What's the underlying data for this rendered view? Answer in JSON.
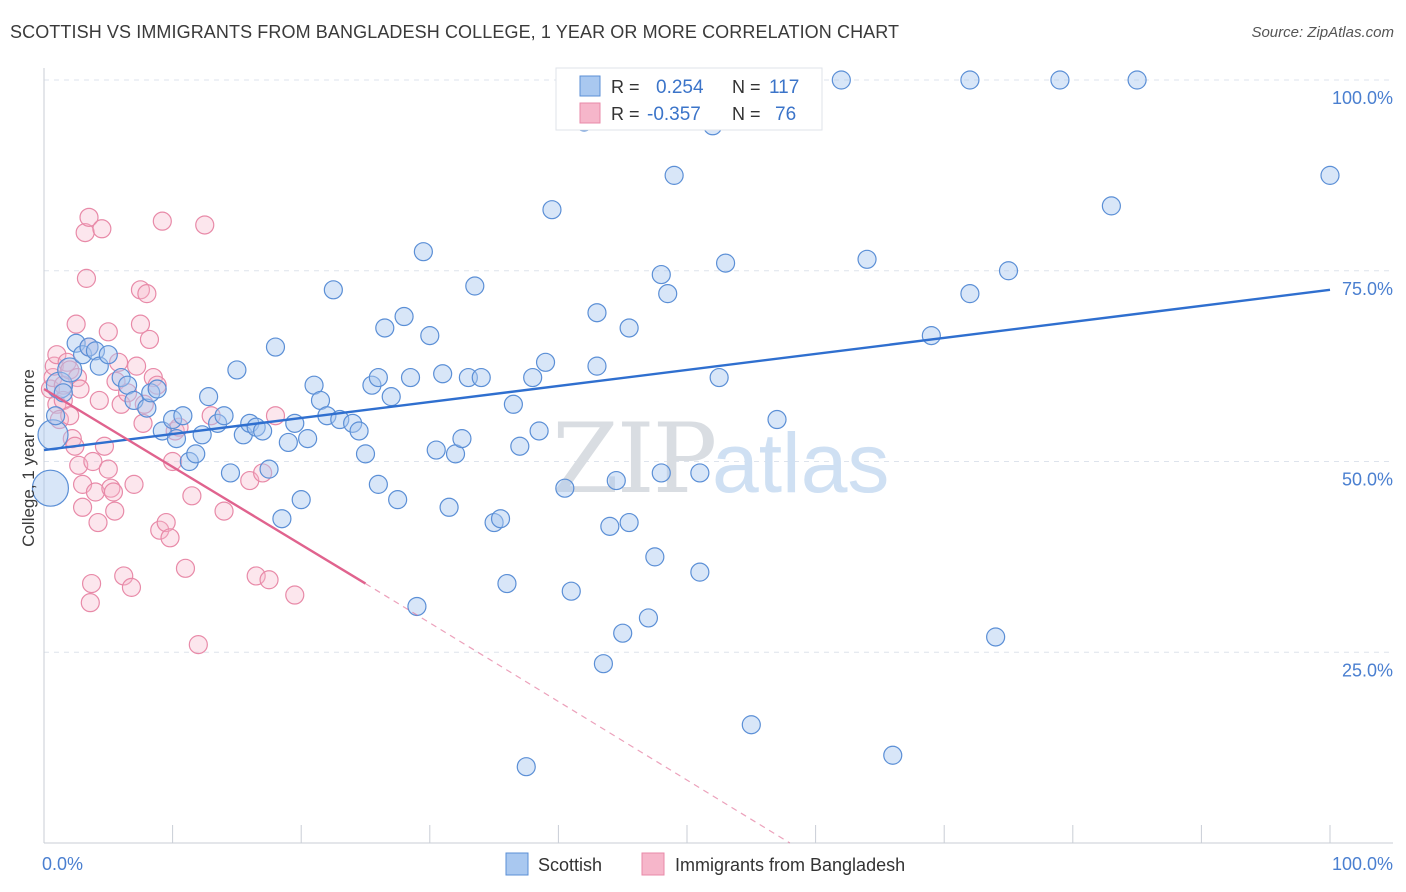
{
  "title": "SCOTTISH VS IMMIGRANTS FROM BANGLADESH COLLEGE, 1 YEAR OR MORE CORRELATION CHART",
  "source": "Source: ZipAtlas.com",
  "watermark": {
    "zip": "ZIP",
    "atlas": "atlas"
  },
  "colors": {
    "blue_fill": "#a9c8f0",
    "blue_stroke": "#5b8fd6",
    "blue_line": "#2f6fcf",
    "pink_fill": "#f6b6ca",
    "pink_stroke": "#e88aa8",
    "pink_line": "#e0638e",
    "axis_text": "#4a7fd0",
    "grid": "#dde3ec"
  },
  "legend_box": {
    "rows": [
      {
        "r_label": "R =",
        "r_value": "0.254",
        "n_label": "N =",
        "n_value": "117"
      },
      {
        "r_label": "R =",
        "r_value": "-0.357",
        "n_label": "N =",
        "n_value": "76"
      }
    ]
  },
  "chart_data": {
    "type": "scatter",
    "title": "SCOTTISH VS IMMIGRANTS FROM BANGLADESH COLLEGE, 1 YEAR OR MORE CORRELATION CHART",
    "xlabel": "",
    "ylabel": "College, 1 year or more",
    "xlim": [
      0,
      100
    ],
    "ylim": [
      0,
      100
    ],
    "x_tick_labels": {
      "left": "0.0%",
      "right": "100.0%"
    },
    "y_tick_labels": [
      {
        "value": 100,
        "label": "100.0%"
      },
      {
        "value": 75,
        "label": "75.0%"
      },
      {
        "value": 50,
        "label": "50.0%"
      },
      {
        "value": 25,
        "label": "25.0%"
      }
    ],
    "grid": true,
    "legend_position": "bottom",
    "series": [
      {
        "name": "Scottish",
        "color": "#a9c8f0",
        "trend": {
          "x": [
            0,
            100
          ],
          "y": [
            51.5,
            72.5
          ],
          "style": "solid"
        },
        "points": [
          [
            0.5,
            46.5
          ],
          [
            0.7,
            53.5
          ],
          [
            0.9,
            56
          ],
          [
            1.2,
            60
          ],
          [
            1.5,
            59
          ],
          [
            2,
            62
          ],
          [
            2.5,
            65.5
          ],
          [
            3,
            64
          ],
          [
            3.5,
            65
          ],
          [
            4,
            64.5
          ],
          [
            4.3,
            62.5
          ],
          [
            5,
            64
          ],
          [
            6,
            61
          ],
          [
            6.5,
            60
          ],
          [
            7,
            58
          ],
          [
            8,
            57
          ],
          [
            8.3,
            59
          ],
          [
            8.8,
            59.5
          ],
          [
            9.2,
            54
          ],
          [
            10,
            55.5
          ],
          [
            10.3,
            53
          ],
          [
            10.8,
            56
          ],
          [
            11.3,
            50
          ],
          [
            11.8,
            51
          ],
          [
            12.3,
            53.5
          ],
          [
            12.8,
            58.5
          ],
          [
            13.5,
            55
          ],
          [
            14,
            56
          ],
          [
            14.5,
            48.5
          ],
          [
            15,
            62
          ],
          [
            15.5,
            53.5
          ],
          [
            16,
            55
          ],
          [
            16.5,
            54.5
          ],
          [
            17,
            54
          ],
          [
            17.5,
            49
          ],
          [
            18,
            65
          ],
          [
            18.5,
            42.5
          ],
          [
            19,
            52.5
          ],
          [
            19.5,
            55
          ],
          [
            20,
            45
          ],
          [
            20.5,
            53
          ],
          [
            21,
            60
          ],
          [
            21.5,
            58
          ],
          [
            22,
            56
          ],
          [
            22.5,
            72.5
          ],
          [
            23,
            55.5
          ],
          [
            24,
            55
          ],
          [
            24.5,
            54
          ],
          [
            25,
            51
          ],
          [
            25.5,
            60
          ],
          [
            26,
            47
          ],
          [
            26.5,
            67.5
          ],
          [
            26,
            61
          ],
          [
            27,
            58.5
          ],
          [
            27.5,
            45
          ],
          [
            28,
            69
          ],
          [
            28.5,
            61
          ],
          [
            29,
            31
          ],
          [
            29.5,
            77.5
          ],
          [
            30,
            66.5
          ],
          [
            30.5,
            51.5
          ],
          [
            31,
            61.5
          ],
          [
            31.5,
            44
          ],
          [
            32,
            51
          ],
          [
            32.5,
            53
          ],
          [
            33,
            61
          ],
          [
            33.5,
            73
          ],
          [
            34,
            61
          ],
          [
            35,
            42
          ],
          [
            35.5,
            42.5
          ],
          [
            36,
            34
          ],
          [
            36.5,
            57.5
          ],
          [
            37,
            52
          ],
          [
            37.5,
            10
          ],
          [
            38,
            61
          ],
          [
            38.5,
            54
          ],
          [
            39,
            63
          ],
          [
            39.5,
            83
          ],
          [
            40.5,
            46.5
          ],
          [
            41,
            33
          ],
          [
            42,
            94.5
          ],
          [
            43,
            69.5
          ],
          [
            43,
            62.5
          ],
          [
            43.5,
            23.5
          ],
          [
            44,
            41.5
          ],
          [
            44.5,
            47.5
          ],
          [
            45,
            27.5
          ],
          [
            45.5,
            67.5
          ],
          [
            45.5,
            42
          ],
          [
            47,
            29.5
          ],
          [
            47.5,
            37.5
          ],
          [
            48,
            74.5
          ],
          [
            48,
            48.5
          ],
          [
            48.5,
            72
          ],
          [
            49,
            87.5
          ],
          [
            51,
            35.5
          ],
          [
            51,
            48.5
          ],
          [
            52,
            94
          ],
          [
            52.5,
            61
          ],
          [
            53,
            76
          ],
          [
            55,
            15.5
          ],
          [
            57,
            55.5
          ],
          [
            59.5,
            100
          ],
          [
            62,
            100
          ],
          [
            64,
            76.5
          ],
          [
            66,
            11.5
          ],
          [
            69,
            66.5
          ],
          [
            72,
            100
          ],
          [
            72,
            72
          ],
          [
            74,
            27
          ],
          [
            75,
            75
          ],
          [
            79,
            100
          ],
          [
            83,
            83.5
          ],
          [
            85,
            100
          ],
          [
            100,
            87.5
          ]
        ]
      },
      {
        "name": "Immigrants from Bangladesh",
        "color": "#f6b6ca",
        "trend": {
          "x": [
            0,
            25
          ],
          "y": [
            59.5,
            34
          ],
          "dash_to": {
            "x": 58,
            "y": 0
          },
          "style": "solid-then-dashed"
        },
        "points": [
          [
            0.5,
            59.5
          ],
          [
            0.7,
            61
          ],
          [
            0.8,
            62.5
          ],
          [
            1,
            64
          ],
          [
            1,
            57.5
          ],
          [
            1.2,
            55.5
          ],
          [
            1.5,
            60
          ],
          [
            1.5,
            58
          ],
          [
            1.8,
            63
          ],
          [
            2,
            62
          ],
          [
            2,
            56
          ],
          [
            2.2,
            53
          ],
          [
            2.4,
            52
          ],
          [
            2.5,
            68
          ],
          [
            2.6,
            61
          ],
          [
            2.7,
            49.5
          ],
          [
            2.8,
            59.5
          ],
          [
            3,
            47
          ],
          [
            3,
            44
          ],
          [
            3.2,
            80
          ],
          [
            3.3,
            74
          ],
          [
            3.5,
            65
          ],
          [
            3.5,
            82
          ],
          [
            3.6,
            31.5
          ],
          [
            3.7,
            34
          ],
          [
            3.8,
            50
          ],
          [
            4,
            46
          ],
          [
            4.2,
            42
          ],
          [
            4.3,
            58
          ],
          [
            4.5,
            80.5
          ],
          [
            4.7,
            52
          ],
          [
            5,
            49
          ],
          [
            5,
            67
          ],
          [
            5.2,
            46.5
          ],
          [
            5.4,
            46
          ],
          [
            5.5,
            43.5
          ],
          [
            5.6,
            60.5
          ],
          [
            5.8,
            63
          ],
          [
            6,
            57.5
          ],
          [
            6.2,
            35
          ],
          [
            6.5,
            59
          ],
          [
            6.8,
            33.5
          ],
          [
            7,
            47
          ],
          [
            7.2,
            62.5
          ],
          [
            7.5,
            72.5
          ],
          [
            7.5,
            68
          ],
          [
            7.7,
            55
          ],
          [
            7.8,
            57.5
          ],
          [
            8,
            72
          ],
          [
            8.2,
            66
          ],
          [
            8.5,
            61
          ],
          [
            8.8,
            60
          ],
          [
            9,
            41
          ],
          [
            9.2,
            81.5
          ],
          [
            9.5,
            42
          ],
          [
            9.8,
            40
          ],
          [
            10,
            50
          ],
          [
            10.2,
            54
          ],
          [
            10.5,
            54.5
          ],
          [
            11,
            36
          ],
          [
            11.5,
            45.5
          ],
          [
            12,
            26
          ],
          [
            12.5,
            81
          ],
          [
            13,
            56
          ],
          [
            14,
            43.5
          ],
          [
            16,
            47.5
          ],
          [
            16.5,
            35
          ],
          [
            17,
            48.5
          ],
          [
            17.5,
            34.5
          ],
          [
            18,
            56
          ],
          [
            19.5,
            32.5
          ]
        ]
      }
    ]
  },
  "legend_bottom": {
    "items": [
      {
        "label": "Scottish"
      },
      {
        "label": "Immigrants from Bangladesh"
      }
    ]
  }
}
